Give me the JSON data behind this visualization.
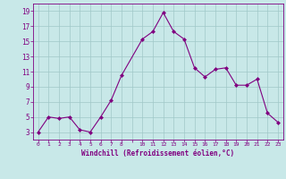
{
  "x": [
    0,
    1,
    2,
    3,
    4,
    5,
    6,
    7,
    8,
    10,
    11,
    12,
    13,
    14,
    15,
    16,
    17,
    18,
    19,
    20,
    21,
    22,
    23
  ],
  "y": [
    3,
    5,
    4.8,
    5,
    3.3,
    3,
    5,
    7.2,
    10.5,
    15.3,
    16.3,
    18.8,
    16.3,
    15.3,
    11.5,
    10.3,
    11.3,
    11.5,
    9.2,
    9.2,
    10,
    5.5,
    4.3
  ],
  "line_color": "#800080",
  "marker": "D",
  "marker_size": 2,
  "bg_color": "#c8e8e8",
  "grid_color": "#a0c8c8",
  "xlabel": "Windchill (Refroidissement éolien,°C)",
  "xlim": [
    -0.5,
    23.5
  ],
  "ylim": [
    2,
    20
  ],
  "yticks": [
    3,
    5,
    7,
    9,
    11,
    13,
    15,
    17,
    19
  ],
  "xtick_labels": [
    "0",
    "1",
    "2",
    "3",
    "4",
    "5",
    "6",
    "7",
    "8",
    "",
    "10",
    "11",
    "12",
    "13",
    "14",
    "15",
    "16",
    "17",
    "18",
    "19",
    "20",
    "21",
    "22",
    "23"
  ],
  "xtick_positions": [
    0,
    1,
    2,
    3,
    4,
    5,
    6,
    7,
    8,
    9,
    10,
    11,
    12,
    13,
    14,
    15,
    16,
    17,
    18,
    19,
    20,
    21,
    22,
    23
  ],
  "label_color": "#800080",
  "tick_color": "#800080"
}
